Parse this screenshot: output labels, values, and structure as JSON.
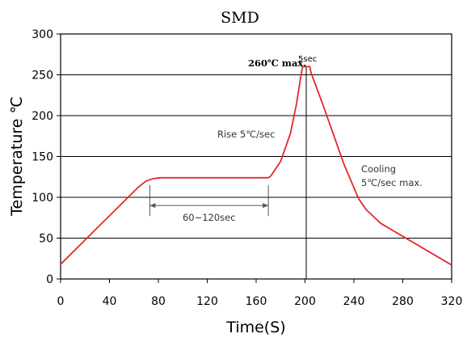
{
  "chart_data": {
    "type": "line",
    "title": "SMD",
    "xlabel": "Time(S)",
    "ylabel": "Temperature ℃",
    "xlim": [
      0,
      320
    ],
    "ylim": [
      0,
      300
    ],
    "x_ticks": [
      0,
      40,
      80,
      120,
      160,
      200,
      240,
      280,
      320
    ],
    "y_ticks": [
      0,
      50,
      100,
      150,
      200,
      250,
      300
    ],
    "grid": "horizontal",
    "series": [
      {
        "color": "#e8262a",
        "x": [
          0,
          64,
          70,
          76,
          82,
          170,
          172,
          180,
          188,
          193,
          197,
          198,
          204,
          205,
          214,
          223,
          232,
          244,
          250,
          262,
          320
        ],
        "y": [
          18,
          113,
          120,
          123,
          124,
          124,
          126,
          144,
          178,
          214,
          252,
          260,
          260,
          252,
          216,
          178,
          140,
          98,
          85,
          68,
          17
        ]
      }
    ],
    "vertical_marker": {
      "x": 201
    },
    "annotations": {
      "peak_label": "260℃ max.",
      "peak_time": "5sec",
      "rise": "Rise 5℃/sec",
      "cooling_line1": "Cooling",
      "cooling_line2": "5℃/sec  max.",
      "preheat_span": {
        "x_start": 73,
        "x_end": 170,
        "label": "60~120sec"
      }
    }
  }
}
